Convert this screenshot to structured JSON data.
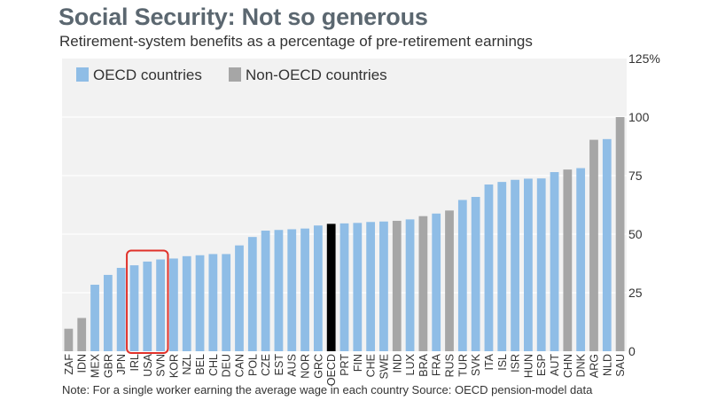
{
  "title": "Social Security: Not so generous",
  "subtitle": "Retirement-system benefits as a percentage of pre-retirement earnings",
  "note": "Note: For a single worker earning the average wage in each country   Source: OECD pension-model data",
  "colors": {
    "oecd": "#8fbde6",
    "non_oecd": "#a6a6a6",
    "oecd_average": "#000000",
    "highlight_box": "#e0312a",
    "plot_background": "#f2f2f2",
    "grid": "#ffffff"
  },
  "chart_data": {
    "type": "bar",
    "title": "Social Security: Not so generous",
    "subtitle": "Retirement-system benefits as a percentage of pre-retirement earnings",
    "xlabel": "",
    "ylabel": "",
    "ylim": [
      0,
      125
    ],
    "yticks": [
      0,
      25,
      50,
      75,
      100,
      125
    ],
    "ytick_labels": [
      "0",
      "25",
      "50",
      "75",
      "100",
      "125%"
    ],
    "grid": true,
    "legend_position": "top-left",
    "legend": [
      {
        "label": "OECD countries",
        "group": "oecd"
      },
      {
        "label": "Non-OECD countries",
        "group": "non_oecd"
      }
    ],
    "categories": [
      "ZAF",
      "IDN",
      "MEX",
      "GBR",
      "JPN",
      "IRL",
      "USA",
      "SVN",
      "KOR",
      "NZL",
      "BEL",
      "CHL",
      "DEU",
      "CAN",
      "POL",
      "CZE",
      "EST",
      "AUS",
      "NOR",
      "GRC",
      "OECD",
      "PRT",
      "FIN",
      "CHE",
      "SWE",
      "IND",
      "LUX",
      "BRA",
      "FRA",
      "RUS",
      "TUR",
      "SVK",
      "ITA",
      "ISL",
      "ISR",
      "HUN",
      "ESP",
      "AUT",
      "CHN",
      "DNK",
      "ARG",
      "NLD",
      "SAU"
    ],
    "values": [
      9.6,
      14.2,
      28.4,
      32.6,
      35.6,
      36.7,
      38.3,
      39.2,
      39.6,
      40.6,
      41.0,
      41.5,
      41.5,
      45.2,
      48.8,
      51.5,
      51.8,
      52.1,
      52.4,
      53.7,
      54.4,
      54.6,
      54.8,
      55.2,
      55.4,
      55.7,
      56.3,
      57.7,
      58.8,
      60.1,
      64.6,
      65.9,
      71.2,
      72.3,
      73.2,
      73.7,
      73.8,
      76.5,
      77.6,
      78.2,
      90.3,
      90.6,
      100.0
    ],
    "groups": [
      "non_oecd",
      "non_oecd",
      "oecd",
      "oecd",
      "oecd",
      "oecd",
      "oecd",
      "oecd",
      "oecd",
      "oecd",
      "oecd",
      "oecd",
      "oecd",
      "oecd",
      "oecd",
      "oecd",
      "oecd",
      "oecd",
      "oecd",
      "oecd",
      "oecd_average",
      "oecd",
      "oecd",
      "oecd",
      "oecd",
      "non_oecd",
      "oecd",
      "non_oecd",
      "oecd",
      "non_oecd",
      "oecd",
      "oecd",
      "oecd",
      "oecd",
      "oecd",
      "oecd",
      "oecd",
      "oecd",
      "non_oecd",
      "oecd",
      "non_oecd",
      "oecd",
      "non_oecd"
    ],
    "annotations": [
      {
        "type": "highlight-box",
        "categories": [
          "IRL",
          "USA",
          "SVN"
        ]
      }
    ]
  }
}
